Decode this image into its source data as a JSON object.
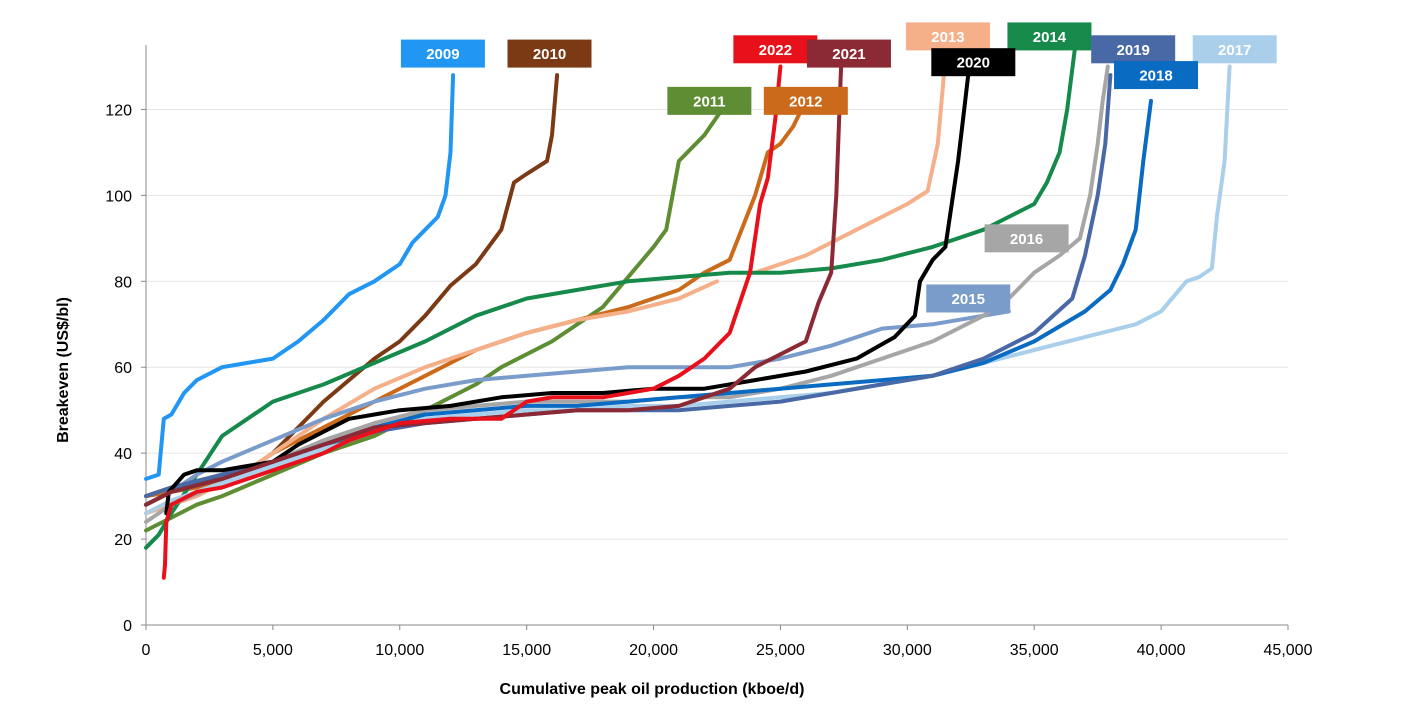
{
  "chart_data": {
    "type": "line",
    "title": "",
    "xlabel": "Cumulative peak oil production (kboe/d)",
    "ylabel": "Breakeven (US$/bl)",
    "xlim": [
      0,
      45000
    ],
    "ylim": [
      0,
      135
    ],
    "xticks": [
      0,
      5000,
      10000,
      15000,
      20000,
      25000,
      30000,
      35000,
      40000,
      45000
    ],
    "xtick_labels": [
      "0",
      "5,000",
      "10,000",
      "15,000",
      "20,000",
      "25,000",
      "30,000",
      "35,000",
      "40,000",
      "45,000"
    ],
    "yticks": [
      0,
      20,
      40,
      60,
      80,
      100,
      120
    ],
    "ytick_labels": [
      "0",
      "20",
      "40",
      "60",
      "80",
      "100",
      "120"
    ],
    "grid": "horizontal",
    "legend": "labels at curve ends",
    "series": [
      {
        "name": "2009",
        "color": "#2196F3",
        "label_pos": [
          11700,
          133
        ],
        "x": [
          0,
          500,
          700,
          1000,
          1500,
          2000,
          3000,
          4000,
          5000,
          6000,
          7000,
          8000,
          9000,
          10000,
          10500,
          11000,
          11500,
          11800,
          12000,
          12100
        ],
        "y": [
          34,
          35,
          48,
          49,
          54,
          57,
          60,
          61,
          62,
          66,
          71,
          77,
          80,
          84,
          89,
          92,
          95,
          100,
          110,
          128
        ]
      },
      {
        "name": "2010",
        "color": "#7B3A14",
        "label_pos": [
          15900,
          133
        ],
        "x": [
          0,
          500,
          1000,
          2000,
          3000,
          4000,
          5000,
          6000,
          7000,
          8000,
          9000,
          10000,
          11000,
          12000,
          13000,
          14000,
          14500,
          15000,
          15800,
          16000,
          16200
        ],
        "y": [
          30,
          31,
          32,
          33,
          34,
          36,
          40,
          46,
          52,
          57,
          62,
          66,
          72,
          79,
          84,
          92,
          103,
          105,
          108,
          114,
          128
        ]
      },
      {
        "name": "2011",
        "color": "#5E8D33",
        "label_pos": [
          22000,
          122
        ],
        "x": [
          0,
          1000,
          2000,
          3000,
          5000,
          7000,
          9000,
          11000,
          13000,
          14000,
          16000,
          18000,
          20000,
          20500,
          21000,
          22000,
          22700
        ],
        "y": [
          22,
          25,
          28,
          30,
          35,
          40,
          44,
          50,
          56,
          60,
          66,
          74,
          88,
          92,
          108,
          114,
          120
        ]
      },
      {
        "name": "2012",
        "color": "#CC6A1C",
        "label_pos": [
          26000,
          122
        ],
        "x": [
          0,
          1000,
          2000,
          3000,
          4000,
          5000,
          7000,
          9000,
          11000,
          13000,
          15000,
          17000,
          19000,
          21000,
          22000,
          23000,
          24000,
          24500,
          25000,
          25500,
          26000
        ],
        "y": [
          30,
          31,
          32,
          34,
          36,
          40,
          46,
          52,
          58,
          64,
          68,
          71,
          74,
          78,
          82,
          85,
          100,
          110,
          112,
          116,
          122
        ]
      },
      {
        "name": "2013",
        "color": "#F5B08A",
        "label_pos": [
          31500,
          136
        ],
        "x": [
          0,
          1000,
          2000,
          3000,
          4000,
          5000,
          7000,
          9000,
          11000,
          13000,
          15000,
          17000,
          19000,
          21000,
          22500
        ],
        "y": [
          26,
          28,
          30,
          33,
          36,
          40,
          48,
          55,
          60,
          64,
          68,
          71,
          73,
          76,
          80
        ]
      },
      {
        "name": "2013",
        "color": "#F5B08A",
        "label_pos": [
          31500,
          136
        ],
        "x": [
          24000,
          26000,
          28000,
          30000,
          30800,
          31200,
          31500
        ],
        "y": [
          82,
          86,
          92,
          98,
          101,
          112,
          132
        ]
      },
      {
        "name": "2014",
        "color": "#168A4A",
        "label_pos": [
          35500,
          136
        ],
        "x": [
          0,
          500,
          1000,
          2000,
          3000,
          4000,
          5000,
          7000,
          9000,
          11000,
          13000,
          15000,
          17000,
          19000,
          21000,
          23000,
          25000,
          27000,
          29000,
          31000,
          33000,
          34000,
          35000,
          35500,
          36000,
          36300,
          36600
        ],
        "y": [
          18,
          21,
          26,
          35,
          44,
          48,
          52,
          56,
          61,
          66,
          72,
          76,
          78,
          80,
          81,
          82,
          82,
          83,
          85,
          88,
          92,
          95,
          98,
          103,
          110,
          120,
          134
        ]
      },
      {
        "name": "2015",
        "color": "#7A9CCB",
        "label_pos": [
          32400,
          75
        ],
        "x": [
          0,
          1000,
          2000,
          3000,
          5000,
          7000,
          9000,
          11000,
          13000,
          15000,
          17000,
          19000,
          21000,
          23000,
          25000,
          27000,
          29000,
          31000,
          33000,
          34000
        ],
        "y": [
          28,
          31,
          35,
          38,
          43,
          48,
          52,
          55,
          57,
          58,
          59,
          60,
          60,
          60,
          62,
          65,
          69,
          70,
          72,
          73
        ]
      },
      {
        "name": "2016",
        "color": "#A6A6A6",
        "label_pos": [
          34700,
          90
        ],
        "x": [
          0,
          1000,
          3000,
          5000,
          7000,
          9000,
          11000,
          13000,
          15000,
          17000,
          19000,
          21000,
          23000,
          25000,
          27000,
          29000,
          31000,
          33000,
          34000,
          35000,
          36000,
          36800
        ],
        "y": [
          24,
          28,
          33,
          38,
          43,
          47,
          50,
          51,
          52,
          52,
          52,
          53,
          53,
          55,
          58,
          62,
          66,
          72,
          76,
          82,
          86,
          90
        ]
      },
      {
        "name": "2016",
        "color": "#A6A6A6",
        "label_pos": [
          34700,
          90
        ],
        "x": [
          36800,
          37200,
          37500,
          37700,
          37900
        ],
        "y": [
          90,
          100,
          112,
          122,
          130
        ]
      },
      {
        "name": "2017",
        "color": "#A9CFEB",
        "label_pos": [
          42800,
          133
        ],
        "x": [
          0,
          1000,
          3000,
          5000,
          7000,
          9000,
          11000,
          13000,
          15000,
          17000,
          19000,
          21000,
          23000,
          25000,
          27000,
          29000,
          31000,
          33000,
          35000,
          37000,
          39000,
          40000,
          41000,
          41500,
          42000,
          42200,
          42500,
          42700
        ],
        "y": [
          26,
          29,
          33,
          37,
          41,
          45,
          48,
          49,
          50,
          50,
          51,
          51,
          52,
          53,
          54,
          56,
          58,
          61,
          64,
          67,
          70,
          73,
          80,
          81,
          83,
          95,
          108,
          130
        ]
      },
      {
        "name": "2018",
        "color": "#0A6BC2",
        "label_pos": [
          39900,
          128
        ],
        "x": [
          0,
          1000,
          3000,
          5000,
          7000,
          9000,
          11000,
          13000,
          15000,
          17000,
          19000,
          21000,
          23000,
          25000,
          27000,
          29000,
          31000,
          33000,
          35000,
          37000,
          38000,
          38500,
          39000,
          39300,
          39600
        ],
        "y": [
          28,
          31,
          34,
          38,
          42,
          46,
          49,
          50,
          51,
          51,
          52,
          53,
          54,
          55,
          56,
          57,
          58,
          61,
          66,
          73,
          78,
          84,
          92,
          108,
          122
        ]
      },
      {
        "name": "2019",
        "color": "#4868A6",
        "label_pos": [
          37500,
          135
        ],
        "x": [
          0,
          1000,
          3000,
          5000,
          7000,
          9000,
          11000,
          13000,
          15000,
          17000,
          19000,
          21000,
          23000,
          25000,
          27000,
          29000,
          31000,
          33000,
          35000,
          36500,
          37000,
          37500,
          37800,
          38000
        ],
        "y": [
          30,
          32,
          35,
          38,
          42,
          45,
          47,
          48,
          49,
          50,
          50,
          50,
          51,
          52,
          54,
          56,
          58,
          62,
          68,
          76,
          86,
          100,
          112,
          128
        ]
      },
      {
        "name": "2020",
        "color": "#000000",
        "label_pos": [
          32600,
          130
        ],
        "x": [
          800,
          900,
          1200,
          1500,
          2000,
          3000,
          4000,
          5000,
          6000,
          7000,
          8000,
          9000,
          10000,
          12000,
          14000,
          16000,
          18000,
          20000,
          22000,
          24000,
          26000,
          28000,
          29500,
          30300,
          30500,
          31000,
          31500,
          31800,
          32000,
          32200,
          32400
        ],
        "y": [
          26,
          31,
          33,
          35,
          36,
          36,
          37,
          38,
          42,
          45,
          48,
          49,
          50,
          51,
          53,
          54,
          54,
          55,
          55,
          57,
          59,
          62,
          67,
          72,
          80,
          85,
          88,
          100,
          108,
          118,
          128
        ]
      },
      {
        "name": "2021",
        "color": "#8B2A34",
        "label_pos": [
          27700,
          133
        ],
        "x": [
          0,
          1000,
          3000,
          5000,
          7000,
          9000,
          11000,
          13000,
          15000,
          17000,
          19000,
          21000,
          23000,
          24000,
          25000,
          26000,
          26500,
          27000,
          27200,
          27400
        ],
        "y": [
          28,
          31,
          34,
          38,
          42,
          46,
          47,
          48,
          49,
          50,
          50,
          51,
          55,
          60,
          63,
          66,
          75,
          82,
          100,
          132
        ]
      },
      {
        "name": "2022",
        "color": "#E8101A",
        "label_pos": [
          24800,
          133
        ],
        "x": [
          700,
          750,
          800,
          1000,
          2000,
          3000,
          4000,
          5000,
          6000,
          7000,
          8000,
          9000,
          10000,
          12000,
          14000,
          15000,
          16000,
          18000,
          20000,
          21000,
          22000,
          23000,
          23800,
          24200,
          24500,
          24800,
          25000
        ],
        "y": [
          11,
          14,
          24,
          28,
          31,
          32,
          34,
          36,
          38,
          40,
          43,
          45,
          47,
          48,
          48,
          52,
          53,
          53,
          55,
          58,
          62,
          68,
          82,
          98,
          104,
          118,
          130
        ]
      }
    ],
    "labels": [
      {
        "text": "2009",
        "bg": "#2196F3",
        "fg": "#ffffff",
        "x": 11700,
        "y": 133
      },
      {
        "text": "2010",
        "bg": "#7B3A14",
        "fg": "#ffffff",
        "x": 15900,
        "y": 133
      },
      {
        "text": "2022",
        "bg": "#E8101A",
        "fg": "#ffffff",
        "x": 24800,
        "y": 134
      },
      {
        "text": "2021",
        "bg": "#8B2A34",
        "fg": "#ffffff",
        "x": 27700,
        "y": 133
      },
      {
        "text": "2013",
        "bg": "#F5B08A",
        "fg": "#ffffff",
        "x": 31600,
        "y": 137
      },
      {
        "text": "2014",
        "bg": "#168A4A",
        "fg": "#ffffff",
        "x": 35600,
        "y": 137
      },
      {
        "text": "2019",
        "bg": "#4868A6",
        "fg": "#ffffff",
        "x": 38900,
        "y": 134
      },
      {
        "text": "2017",
        "bg": "#A9CFEB",
        "fg": "#ffffff",
        "x": 42900,
        "y": 134
      },
      {
        "text": "2020",
        "bg": "#000000",
        "fg": "#ffffff",
        "x": 32600,
        "y": 131
      },
      {
        "text": "2018",
        "bg": "#0A6BC2",
        "fg": "#ffffff",
        "x": 39800,
        "y": 128
      },
      {
        "text": "2011",
        "bg": "#5E8D33",
        "fg": "#ffffff",
        "x": 22200,
        "y": 122
      },
      {
        "text": "2012",
        "bg": "#CC6A1C",
        "fg": "#ffffff",
        "x": 26000,
        "y": 122
      },
      {
        "text": "2016",
        "bg": "#A6A6A6",
        "fg": "#ffffff",
        "x": 34700,
        "y": 90
      },
      {
        "text": "2015",
        "bg": "#7A9CCB",
        "fg": "#ffffff",
        "x": 32400,
        "y": 76
      }
    ]
  }
}
